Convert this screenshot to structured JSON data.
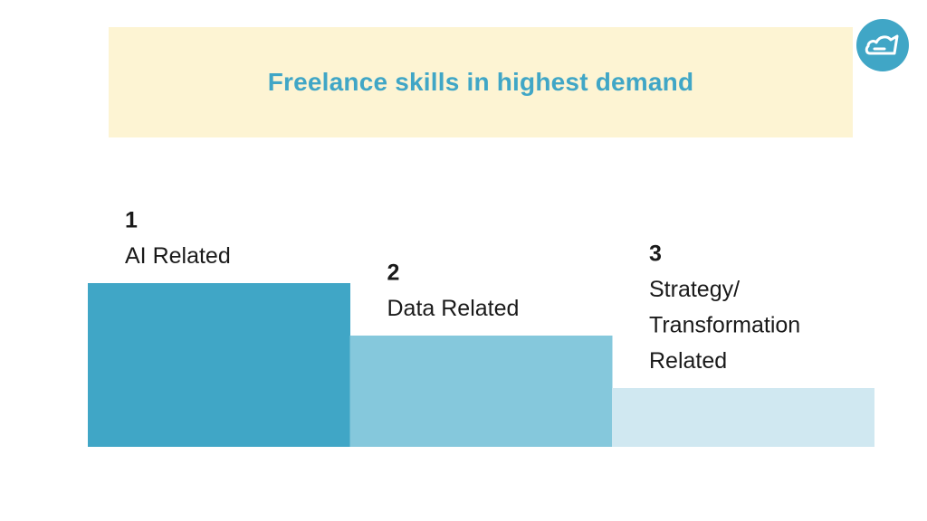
{
  "title": "Freelance skills in highest demand",
  "logo_icon": "cloud-icon",
  "colors": {
    "title": "#40a6c6",
    "banner_bg": "#fdf4d3",
    "logo_bg": "#40a6c6",
    "bars": [
      "#40a6c6",
      "#85c8dc",
      "#d0e8f1"
    ]
  },
  "chart_data": {
    "type": "bar",
    "categories": [
      "AI Related",
      "Data Related",
      "Strategy/ Transformation Related"
    ],
    "ranks": [
      "1",
      "2",
      "3"
    ],
    "label_lines": [
      [
        "AI Related"
      ],
      [
        "Data Related"
      ],
      [
        "Strategy/",
        "Transformation",
        "Related"
      ]
    ],
    "values": [
      3,
      2,
      1
    ],
    "ylim": [
      0,
      3
    ],
    "grid": false,
    "legend": false
  }
}
